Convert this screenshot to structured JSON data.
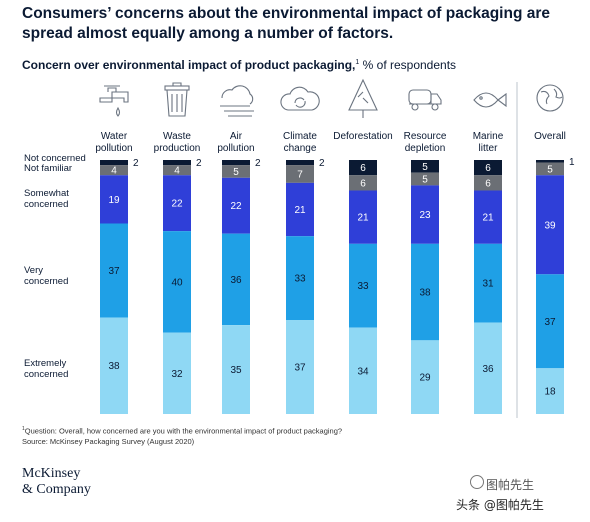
{
  "headline": "Consumers’ concerns about the environmental impact of packaging are spread almost equally among a number of factors.",
  "subtitle": {
    "bold": "Concern over environmental impact of product packaging,",
    "sup": "1",
    "rest": " % of respondents"
  },
  "footnote": {
    "sup": "1",
    "question": "Question: Overall, how concerned are you with the environmental impact of product packaging?",
    "source": "Source: McKinsey Packaging Survey (August 2020)"
  },
  "logo": {
    "line1": "McKinsey",
    "line2": "& Company"
  },
  "watermark": {
    "line1": "图帕先生",
    "line2": "头条 @图帕先生"
  },
  "icons": [
    "faucet-icon",
    "trash-can-icon",
    "air-icon",
    "recycle-cloud-icon",
    "tree-icon",
    "tanker-truck-icon",
    "fish-icon",
    "globe-icon"
  ],
  "chart_data": {
    "type": "bar",
    "stacked": true,
    "normalized_to": 100,
    "categories": [
      "Water pollution",
      "Waste production",
      "Air pollution",
      "Climate change",
      "Deforestation",
      "Resource depletion",
      "Marine litter",
      "Overall"
    ],
    "category_lines": [
      [
        "Water",
        "pollution"
      ],
      [
        "Waste",
        "production"
      ],
      [
        "Air",
        "pollution"
      ],
      [
        "Climate",
        "change"
      ],
      [
        "Deforestation"
      ],
      [
        "Resource",
        "depletion"
      ],
      [
        "Marine",
        "litter"
      ],
      [
        "Overall"
      ]
    ],
    "series": [
      {
        "name": "Not concerned",
        "lines": [
          "Not concerned"
        ],
        "color": "#0b1a33",
        "text_color": "#ffffff",
        "values": [
          2,
          2,
          2,
          2,
          6,
          5,
          6,
          1
        ],
        "labels": [
          "2",
          "2",
          "2",
          "2",
          "6",
          "5",
          "6",
          "1"
        ]
      },
      {
        "name": "Not familiar",
        "lines": [
          "Not familiar"
        ],
        "color": "#6b6f75",
        "text_color": "#ffffff",
        "values": [
          4,
          4,
          5,
          7,
          6,
          5,
          6,
          5
        ],
        "labels": [
          "4",
          "4",
          "5",
          "7",
          "6",
          "5",
          "6",
          "5"
        ]
      },
      {
        "name": "Somewhat concerned",
        "lines": [
          "Somewhat",
          "concerned"
        ],
        "color": "#2f3fd8",
        "text_color": "#ffffff",
        "values": [
          19,
          22,
          22,
          21,
          21,
          23,
          21,
          39
        ],
        "labels": [
          "19",
          "22",
          "22",
          "21",
          "21",
          "23",
          "21",
          "39"
        ]
      },
      {
        "name": "Very concerned",
        "lines": [
          "Very",
          "concerned"
        ],
        "color": "#1fa0e6",
        "text_color": "#0b1a33",
        "values": [
          37,
          40,
          36,
          33,
          33,
          38,
          31,
          37
        ],
        "labels": [
          "37",
          "40",
          "36",
          "33",
          "33",
          "38",
          "31",
          "37"
        ]
      },
      {
        "name": "Extremely concerned",
        "lines": [
          "Extremely",
          "concerned"
        ],
        "color": "#8fd8f4",
        "text_color": "#0b1a33",
        "values": [
          38,
          32,
          35,
          37,
          34,
          29,
          36,
          18
        ],
        "labels": [
          "38",
          "32",
          "35",
          "37",
          "34",
          "29",
          "36",
          "18"
        ]
      }
    ],
    "legend": "left, row labels"
  }
}
